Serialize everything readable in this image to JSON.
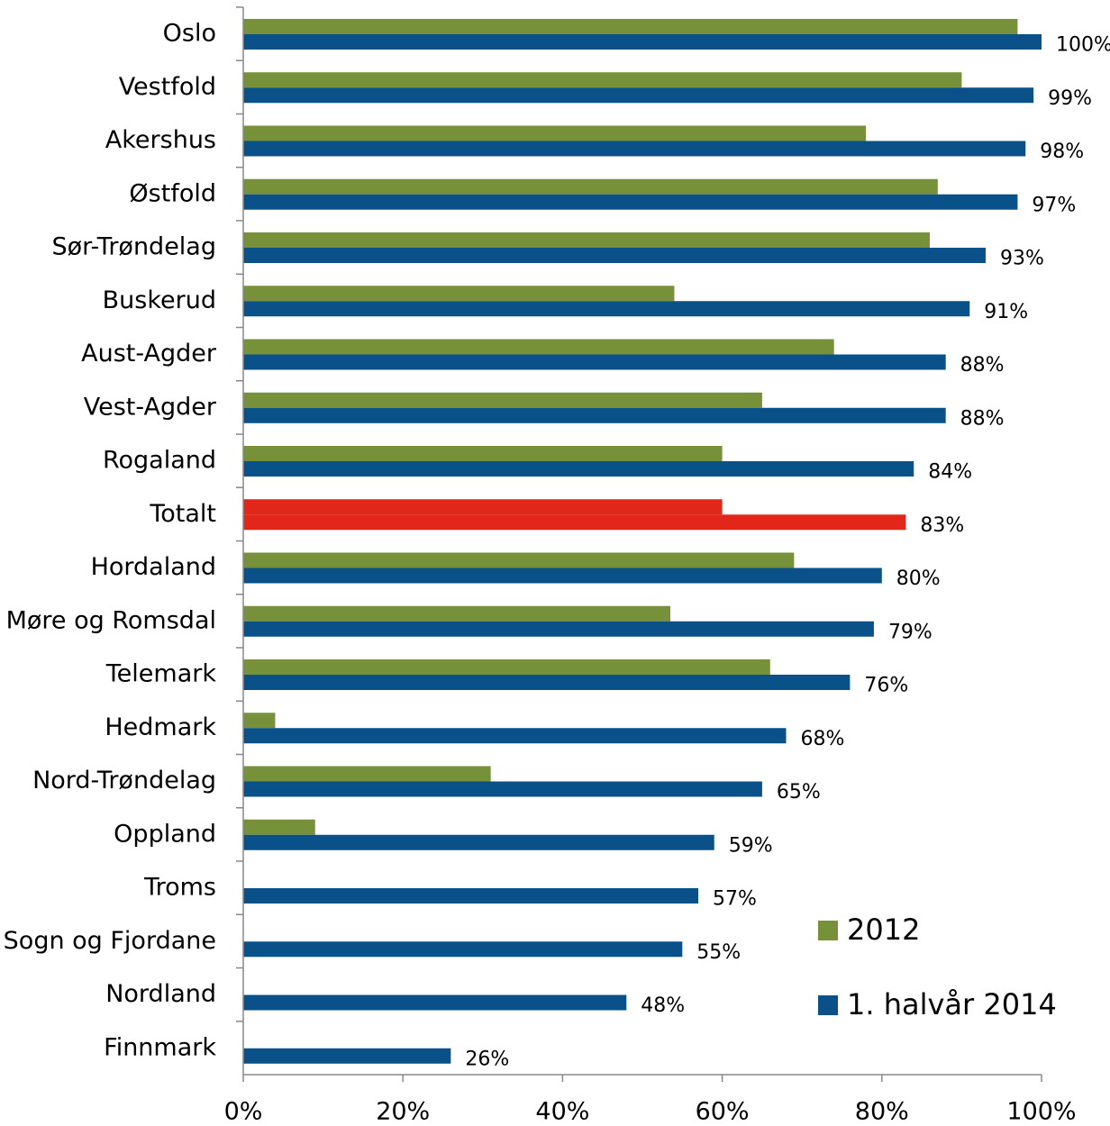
{
  "chart_data": {
    "type": "bar",
    "orientation": "horizontal",
    "categories": [
      "Oslo",
      "Vestfold",
      "Akershus",
      "Østfold",
      "Sør-Trøndelag",
      "Buskerud",
      "Aust-Agder",
      "Vest-Agder",
      "Rogaland",
      "Totalt",
      "Hordaland",
      "Møre og Romsdal",
      "Telemark",
      "Hedmark",
      "Nord-Trøndelag",
      "Oppland",
      "Troms",
      "Sogn og Fjordane",
      "Nordland",
      "Finnmark"
    ],
    "series": [
      {
        "name": "2012",
        "color": "#77903a",
        "colors": [
          "#77903a",
          "#77903a",
          "#77903a",
          "#77903a",
          "#77903a",
          "#77903a",
          "#77903a",
          "#77903a",
          "#77903a",
          "#e3261a",
          "#77903a",
          "#77903a",
          "#77903a",
          "#77903a",
          "#77903a",
          "#77903a",
          "#77903a",
          "#77903a",
          "#77903a",
          "#77903a"
        ],
        "values": [
          97,
          90,
          78,
          87,
          86,
          54,
          74,
          65,
          60,
          60,
          69,
          53.5,
          66,
          4,
          31,
          9,
          null,
          null,
          null,
          null
        ]
      },
      {
        "name": "1. halvår 2014",
        "color": "#0a5189",
        "colors": [
          "#0a5189",
          "#0a5189",
          "#0a5189",
          "#0a5189",
          "#0a5189",
          "#0a5189",
          "#0a5189",
          "#0a5189",
          "#0a5189",
          "#e3261a",
          "#0a5189",
          "#0a5189",
          "#0a5189",
          "#0a5189",
          "#0a5189",
          "#0a5189",
          "#0a5189",
          "#0a5189",
          "#0a5189",
          "#0a5189"
        ],
        "values": [
          100,
          99,
          98,
          97,
          93,
          91,
          88,
          88,
          84,
          83,
          80,
          79,
          76,
          68,
          65,
          59,
          57,
          55,
          48,
          26
        ],
        "value_labels": [
          "100%",
          "99%",
          "98%",
          "97%",
          "93%",
          "91%",
          "88%",
          "88%",
          "84%",
          "83%",
          "80%",
          "79%",
          "76%",
          "68%",
          "65%",
          "59%",
          "57%",
          "55%",
          "48%",
          "26%"
        ]
      }
    ],
    "xlim": [
      0,
      100
    ],
    "xticks": [
      {
        "value": 0,
        "label": "0%"
      },
      {
        "value": 20,
        "label": "20%"
      },
      {
        "value": 40,
        "label": "40%"
      },
      {
        "value": 60,
        "label": "60%"
      },
      {
        "value": 80,
        "label": "80%"
      },
      {
        "value": 100,
        "label": "100%"
      }
    ],
    "grid": false,
    "legend": "lower right"
  }
}
